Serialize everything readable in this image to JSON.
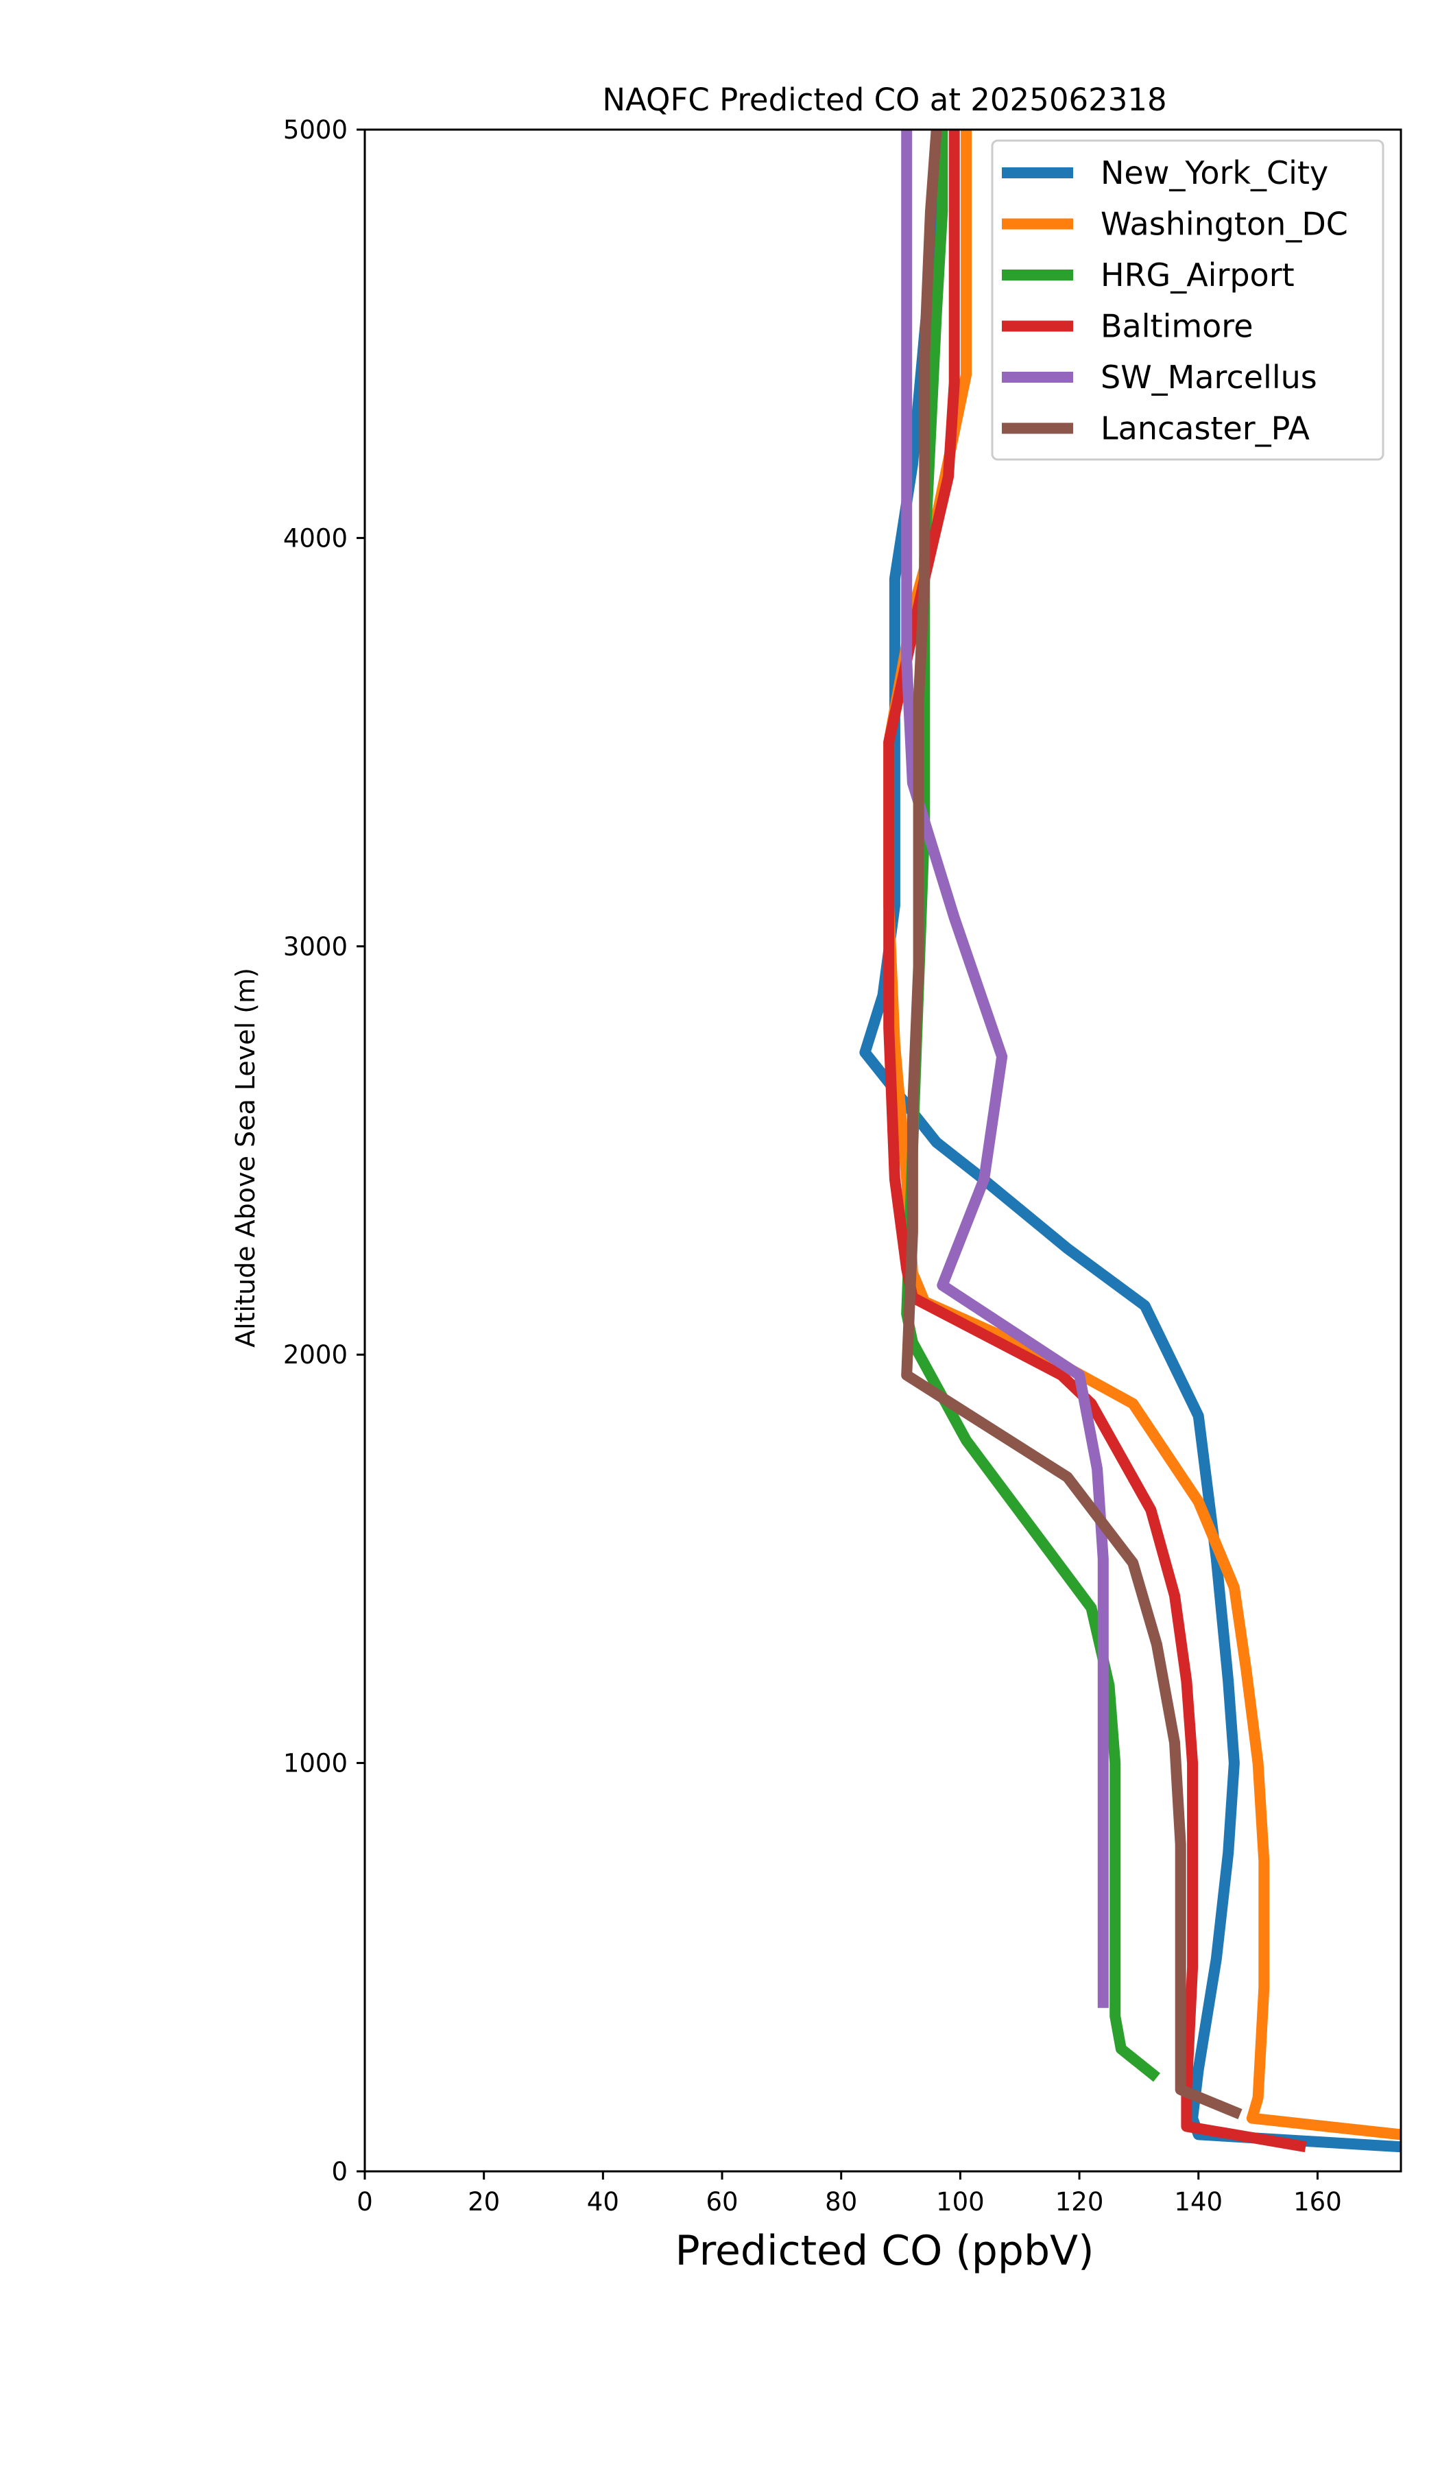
{
  "chart_data": {
    "type": "line",
    "title": "NAQFC Predicted CO at 2025062318",
    "xlabel": "Predicted CO (ppbV)",
    "ylabel": "Altitude Above Sea Level (m)",
    "xlim": [
      0,
      174
    ],
    "ylim": [
      0,
      5000
    ],
    "xticks": [
      0,
      20,
      40,
      60,
      80,
      100,
      120,
      140,
      160
    ],
    "yticks": [
      0,
      1000,
      2000,
      3000,
      4000,
      5000
    ],
    "grid": false,
    "legend_position": "top-right",
    "series": [
      {
        "name": "New_York_City",
        "color": "#1f77b4",
        "points": [
          [
            174,
            60
          ],
          [
            140,
            90
          ],
          [
            139,
            130
          ],
          [
            140,
            250
          ],
          [
            143,
            520
          ],
          [
            145,
            780
          ],
          [
            146,
            1000
          ],
          [
            145,
            1200
          ],
          [
            143,
            1500
          ],
          [
            140,
            1850
          ],
          [
            131,
            2120
          ],
          [
            118,
            2260
          ],
          [
            103,
            2440
          ],
          [
            96,
            2520
          ],
          [
            84,
            2740
          ],
          [
            87,
            2880
          ],
          [
            89,
            3100
          ],
          [
            89,
            3500
          ],
          [
            89,
            3900
          ],
          [
            92,
            4180
          ],
          [
            94,
            4500
          ],
          [
            96,
            4800
          ],
          [
            97,
            5000
          ]
        ]
      },
      {
        "name": "Washington_DC",
        "color": "#ff7f0e",
        "points": [
          [
            174,
            90
          ],
          [
            149,
            130
          ],
          [
            150,
            180
          ],
          [
            151,
            450
          ],
          [
            151,
            760
          ],
          [
            150,
            1000
          ],
          [
            148,
            1230
          ],
          [
            146,
            1430
          ],
          [
            140,
            1640
          ],
          [
            129,
            1880
          ],
          [
            114,
            2000
          ],
          [
            94,
            2130
          ],
          [
            92,
            2200
          ],
          [
            91,
            2430
          ],
          [
            89,
            2760
          ],
          [
            88,
            3100
          ],
          [
            88,
            3500
          ],
          [
            92,
            3820
          ],
          [
            95,
            3980
          ],
          [
            101,
            4400
          ],
          [
            101,
            4800
          ],
          [
            101,
            5000
          ]
        ]
      },
      {
        "name": "HRG_Airport",
        "color": "#2ca02c",
        "points": [
          [
            133,
            230
          ],
          [
            127,
            300
          ],
          [
            126,
            380
          ],
          [
            126,
            700
          ],
          [
            126,
            1000
          ],
          [
            125,
            1190
          ],
          [
            122,
            1380
          ],
          [
            101,
            1790
          ],
          [
            92,
            2030
          ],
          [
            91,
            2100
          ],
          [
            92,
            2500
          ],
          [
            93,
            2900
          ],
          [
            94,
            3300
          ],
          [
            94,
            3660
          ],
          [
            94,
            3950
          ],
          [
            95,
            4250
          ],
          [
            96,
            4550
          ],
          [
            97,
            4800
          ],
          [
            97,
            5000
          ]
        ]
      },
      {
        "name": "Baltimore",
        "color": "#d62728",
        "points": [
          [
            158,
            60
          ],
          [
            138,
            110
          ],
          [
            138,
            200
          ],
          [
            139,
            500
          ],
          [
            139,
            800
          ],
          [
            139,
            1000
          ],
          [
            138,
            1200
          ],
          [
            136,
            1410
          ],
          [
            132,
            1620
          ],
          [
            122,
            1880
          ],
          [
            117,
            1950
          ],
          [
            92,
            2140
          ],
          [
            91,
            2210
          ],
          [
            89,
            2430
          ],
          [
            88,
            2800
          ],
          [
            88,
            3200
          ],
          [
            88,
            3500
          ],
          [
            91,
            3700
          ],
          [
            94,
            3900
          ],
          [
            98,
            4150
          ],
          [
            99,
            4380
          ],
          [
            99,
            4800
          ],
          [
            99,
            5000
          ]
        ]
      },
      {
        "name": "SW_Marcellus",
        "color": "#9467bd",
        "points": [
          [
            124,
            400
          ],
          [
            124,
            700
          ],
          [
            124,
            1000
          ],
          [
            124,
            1250
          ],
          [
            124,
            1500
          ],
          [
            123,
            1720
          ],
          [
            120,
            1950
          ],
          [
            97,
            2170
          ],
          [
            104,
            2430
          ],
          [
            107,
            2730
          ],
          [
            99,
            3070
          ],
          [
            92,
            3400
          ],
          [
            91,
            3700
          ],
          [
            91,
            4000
          ],
          [
            91,
            4300
          ],
          [
            91,
            4650
          ],
          [
            91,
            5000
          ]
        ]
      },
      {
        "name": "Lancaster_PA",
        "color": "#8c564b",
        "points": [
          [
            147,
            140
          ],
          [
            137,
            200
          ],
          [
            137,
            500
          ],
          [
            137,
            800
          ],
          [
            136,
            1050
          ],
          [
            133,
            1290
          ],
          [
            129,
            1490
          ],
          [
            118,
            1700
          ],
          [
            91,
            1950
          ],
          [
            92,
            2300
          ],
          [
            92,
            2600
          ],
          [
            93,
            2950
          ],
          [
            93,
            3300
          ],
          [
            93,
            3600
          ],
          [
            94,
            3900
          ],
          [
            94,
            4150
          ],
          [
            94,
            4450
          ],
          [
            95,
            4800
          ],
          [
            96,
            5000
          ]
        ]
      }
    ]
  }
}
